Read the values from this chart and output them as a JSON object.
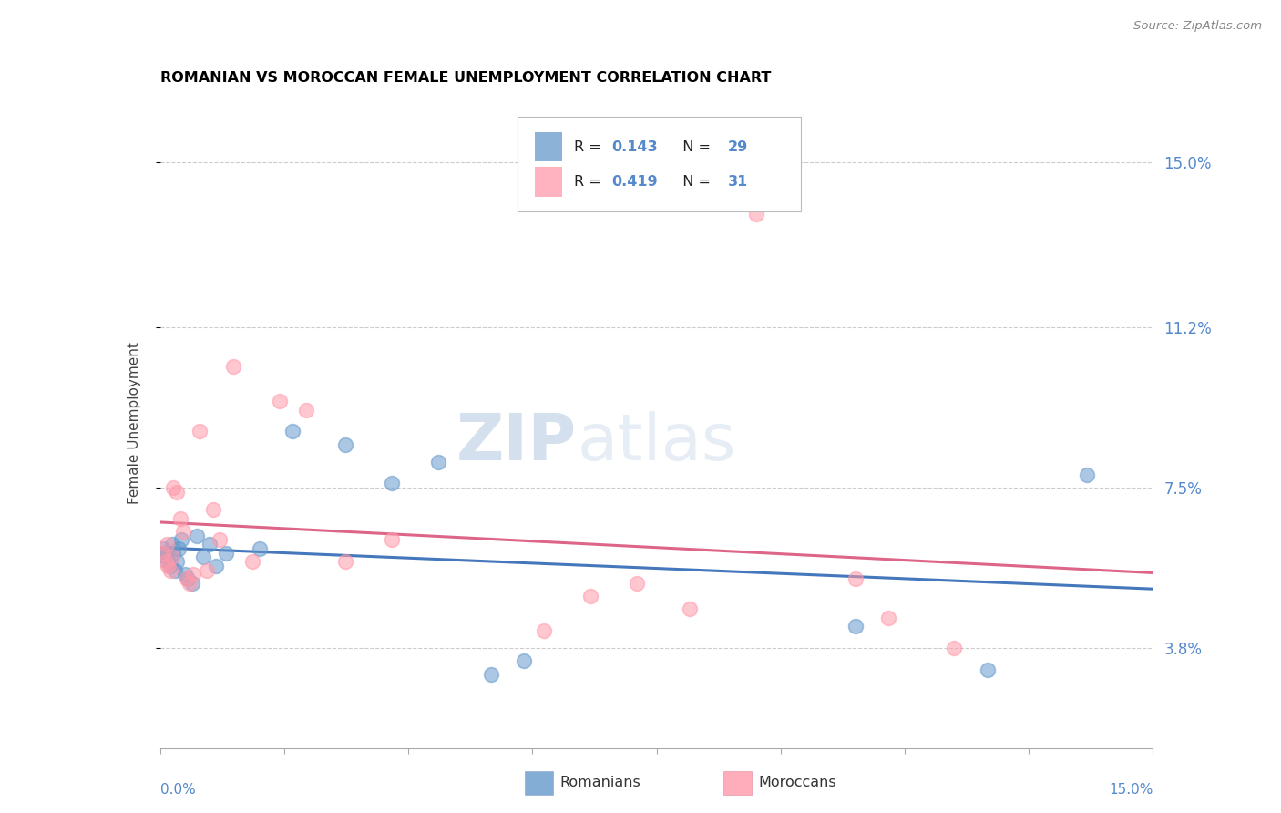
{
  "title": "ROMANIAN VS MOROCCAN FEMALE UNEMPLOYMENT CORRELATION CHART",
  "source": "Source: ZipAtlas.com",
  "ylabel": "Female Unemployment",
  "ytick_labels": [
    "15.0%",
    "11.2%",
    "7.5%",
    "3.8%"
  ],
  "ytick_values": [
    15.0,
    11.2,
    7.5,
    3.8
  ],
  "xmin": 0.0,
  "xmax": 15.0,
  "ymin": 1.5,
  "ymax": 16.5,
  "R_romanian": 0.143,
  "N_romanian": 29,
  "R_moroccan": 0.419,
  "N_moroccan": 31,
  "romanian_color": "#6699cc",
  "moroccan_color": "#ff99aa",
  "romanian_line_color": "#4477bb",
  "moroccan_line_color": "#dd6688",
  "watermark_zip": "ZIP",
  "watermark_atlas": "atlas",
  "romanians_x": [
    0.05,
    0.08,
    0.1,
    0.12,
    0.15,
    0.18,
    0.2,
    0.22,
    0.25,
    0.28,
    0.32,
    0.38,
    0.42,
    0.48,
    0.55,
    0.65,
    0.75,
    0.85,
    1.0,
    1.5,
    2.0,
    2.8,
    3.5,
    4.2,
    5.0,
    5.5,
    10.5,
    12.5,
    14.0
  ],
  "romanians_y": [
    6.1,
    5.9,
    6.0,
    5.8,
    5.7,
    6.2,
    6.0,
    5.6,
    5.8,
    6.1,
    6.3,
    5.5,
    5.4,
    5.3,
    6.4,
    5.9,
    6.2,
    5.7,
    6.0,
    6.1,
    8.8,
    8.5,
    7.6,
    8.1,
    3.2,
    3.5,
    4.3,
    3.3,
    7.8
  ],
  "moroccans_x": [
    0.05,
    0.08,
    0.1,
    0.12,
    0.15,
    0.18,
    0.2,
    0.25,
    0.3,
    0.35,
    0.4,
    0.45,
    0.5,
    0.6,
    0.7,
    0.8,
    0.9,
    1.1,
    1.4,
    1.8,
    2.2,
    2.8,
    3.5,
    5.8,
    6.5,
    7.2,
    8.0,
    9.0,
    10.5,
    11.0,
    12.0
  ],
  "moroccans_y": [
    6.0,
    5.8,
    6.2,
    5.7,
    5.6,
    5.9,
    7.5,
    7.4,
    6.8,
    6.5,
    5.4,
    5.3,
    5.5,
    8.8,
    5.6,
    7.0,
    6.3,
    10.3,
    5.8,
    9.5,
    9.3,
    5.8,
    6.3,
    4.2,
    5.0,
    5.3,
    4.7,
    13.8,
    5.4,
    4.5,
    3.8
  ]
}
